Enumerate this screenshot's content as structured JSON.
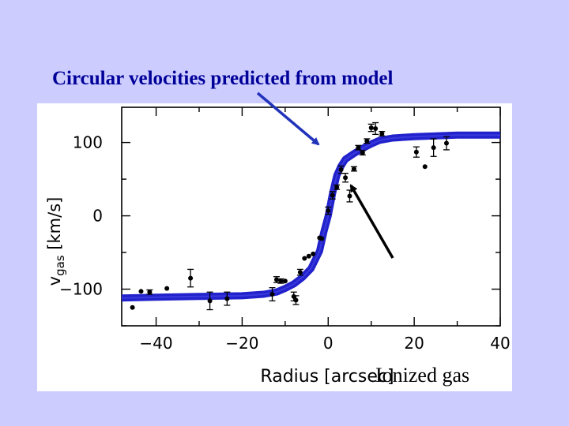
{
  "slide": {
    "title": "Circular velocities predicted from model"
  },
  "annotations": {
    "model_arrow_label": "Circular velocities predicted from model",
    "ionized_label": "Ionized gas"
  },
  "colors": {
    "background": "#ccccff",
    "title": "#000099",
    "model_curve": "#2222cc",
    "arrow": "#2233bb",
    "data_points": "#000000"
  },
  "chart_data": {
    "type": "scatter",
    "xlabel": "Radius [arcsec]",
    "ylabel": "v_gas [km/s]",
    "ylabel_main": "v",
    "ylabel_sub": "gas",
    "ylabel_units": "[km/s]",
    "xlim": [
      -48,
      40
    ],
    "ylim": [
      -150,
      148
    ],
    "x_ticks": [
      -40,
      -20,
      0,
      20,
      40
    ],
    "x_tick_labels": [
      "−40",
      "−20",
      "0",
      "20",
      "40"
    ],
    "y_ticks": [
      -100,
      0,
      100
    ],
    "y_tick_labels": [
      "−100",
      "0",
      "100"
    ],
    "grid": false,
    "series": [
      {
        "kind": "model_curve",
        "style": "thick blue line",
        "x": [
          -48,
          -40,
          -30,
          -20,
          -15,
          -12,
          -10,
          -8,
          -6,
          -4,
          -2,
          -1,
          0,
          1,
          2,
          3,
          4,
          6,
          8,
          10,
          12,
          15,
          20,
          30,
          40
        ],
        "y": [
          -112,
          -111,
          -110,
          -109,
          -107,
          -104,
          -99,
          -93,
          -84,
          -72,
          -48,
          -22,
          0,
          30,
          55,
          68,
          77,
          85,
          92,
          98,
          103,
          106,
          108,
          110,
          110
        ]
      },
      {
        "kind": "ionized_gas",
        "style": "black points with error bars",
        "points": [
          {
            "x": -45.5,
            "y": -125,
            "err": 0
          },
          {
            "x": -43.5,
            "y": -103,
            "err": 0
          },
          {
            "x": -41.5,
            "y": -104,
            "err": 3
          },
          {
            "x": -37.5,
            "y": -99,
            "err": 0
          },
          {
            "x": -32,
            "y": -85,
            "err": 12
          },
          {
            "x": -27.5,
            "y": -116,
            "err": 12
          },
          {
            "x": -23.5,
            "y": -113,
            "err": 9
          },
          {
            "x": -13,
            "y": -107,
            "err": 9
          },
          {
            "x": -12,
            "y": -87,
            "err": 4
          },
          {
            "x": -11,
            "y": -89,
            "err": 3
          },
          {
            "x": -10,
            "y": -89,
            "err": 0
          },
          {
            "x": -8,
            "y": -110,
            "err": 6
          },
          {
            "x": -7.5,
            "y": -115,
            "err": 6
          },
          {
            "x": -6.5,
            "y": -77,
            "err": 4
          },
          {
            "x": -5.5,
            "y": -58,
            "err": 0
          },
          {
            "x": -4.5,
            "y": -55,
            "err": 0
          },
          {
            "x": -3.5,
            "y": -52,
            "err": 0
          },
          {
            "x": -2,
            "y": -30,
            "err": 0
          },
          {
            "x": -1.5,
            "y": -31,
            "err": 0
          },
          {
            "x": 0,
            "y": 7,
            "err": 5
          },
          {
            "x": 1,
            "y": 28,
            "err": 5
          },
          {
            "x": 2,
            "y": 39,
            "err": 3
          },
          {
            "x": 3,
            "y": 63,
            "err": 5
          },
          {
            "x": 4,
            "y": 52,
            "err": 6
          },
          {
            "x": 5,
            "y": 27,
            "err": 8
          },
          {
            "x": 6,
            "y": 64,
            "err": 3
          },
          {
            "x": 7,
            "y": 93,
            "err": 3
          },
          {
            "x": 8,
            "y": 86,
            "err": 3
          },
          {
            "x": 9,
            "y": 102,
            "err": 3
          },
          {
            "x": 10,
            "y": 120,
            "err": 5
          },
          {
            "x": 11,
            "y": 119,
            "err": 8
          },
          {
            "x": 12.5,
            "y": 112,
            "err": 3
          },
          {
            "x": 20.5,
            "y": 87,
            "err": 7
          },
          {
            "x": 22.5,
            "y": 67,
            "err": 0
          },
          {
            "x": 24.5,
            "y": 93,
            "err": 12
          },
          {
            "x": 27.5,
            "y": 99,
            "err": 9
          }
        ]
      }
    ]
  }
}
